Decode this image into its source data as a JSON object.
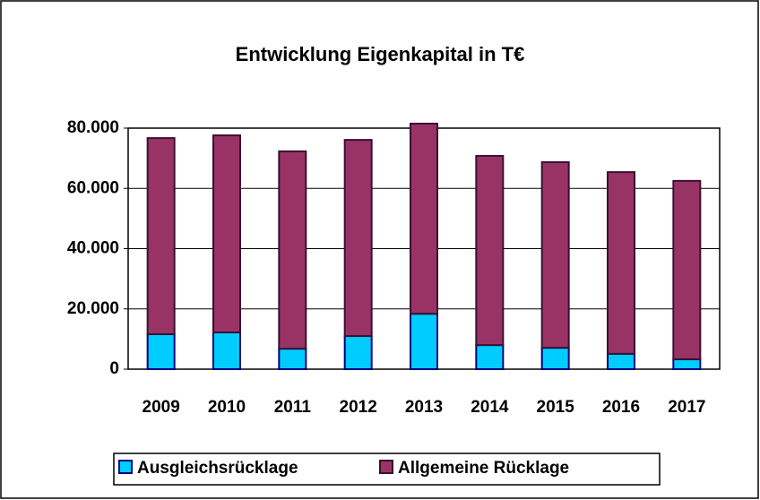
{
  "chart_data": {
    "type": "stacked_bar",
    "title": "Entwicklung Eigenkapital in T€",
    "categories": [
      "2009",
      "2010",
      "2011",
      "2012",
      "2013",
      "2014",
      "2015",
      "2016",
      "2017"
    ],
    "series": [
      {
        "name": "Ausgleichsrücklage",
        "color": "#00ccff",
        "values": [
          11600,
          12200,
          6800,
          11000,
          18400,
          8000,
          7100,
          5100,
          3300
        ]
      },
      {
        "name": "Allgemeine Rücklage",
        "color": "#993366",
        "values": [
          65100,
          65400,
          65500,
          65100,
          63100,
          62800,
          61600,
          60300,
          59200
        ]
      }
    ],
    "ylim": [
      0,
      80000
    ],
    "yticks": [
      0,
      {
        "value": 20000,
        "label": "20.000"
      },
      {
        "value": 40000,
        "label": "40.000"
      },
      {
        "value": 60000,
        "label": "60.000"
      },
      {
        "value": 80000,
        "label": "80.000"
      }
    ],
    "grid": true,
    "legend": "bottom"
  }
}
